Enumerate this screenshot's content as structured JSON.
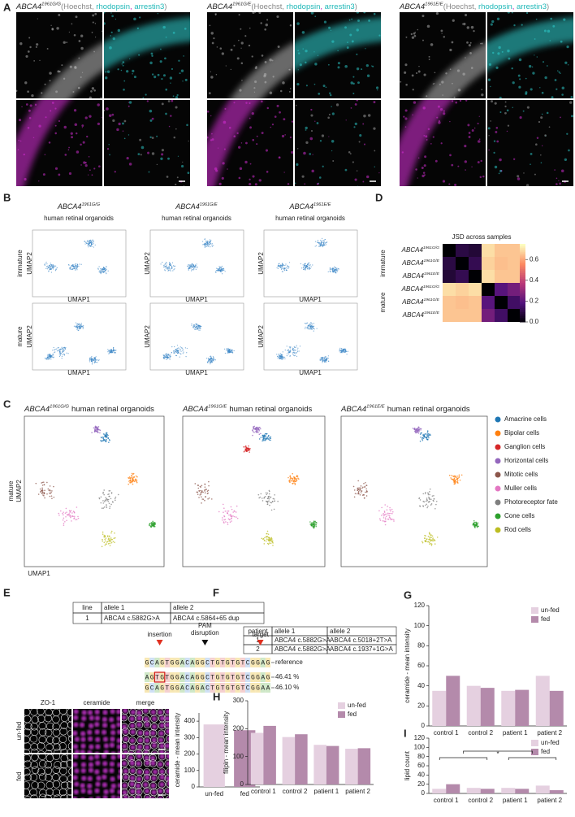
{
  "genotypes": [
    {
      "gene": "ABCA4",
      "allele": "1961G/G"
    },
    {
      "gene": "ABCA4",
      "allele": "1961G/E"
    },
    {
      "gene": "ABCA4",
      "allele": "1961E/E"
    }
  ],
  "A": {
    "label": "A",
    "stains": [
      "(Hoechst, ",
      "rhodopsin",
      ", ",
      "arrestin3",
      ")"
    ]
  },
  "B": {
    "label": "B",
    "subtitle": "human retinal organoids",
    "rows": [
      "immature",
      "mature"
    ],
    "xlabel": "UMAP1",
    "ylabel": "UMAP2"
  },
  "C": {
    "label": "C",
    "subtitle": "human retinal organoids",
    "row": "mature",
    "xlabel": "UMAP1",
    "ylabel": "UMAP2",
    "cell_types": [
      {
        "name": "Amacrine cells",
        "color": "#1f77b4"
      },
      {
        "name": "Bipolar cells",
        "color": "#ff7f0e"
      },
      {
        "name": "Ganglion cells",
        "color": "#d62728"
      },
      {
        "name": "Horizontal cells",
        "color": "#9467bd"
      },
      {
        "name": "Mitotic cells",
        "color": "#8c564b"
      },
      {
        "name": "Muller cells",
        "color": "#e377c2"
      },
      {
        "name": "Photoreceptor fate",
        "color": "#7f7f7f"
      },
      {
        "name": "Cone cells",
        "color": "#2ca02c"
      },
      {
        "name": "Rod cells",
        "color": "#bcbd22"
      }
    ]
  },
  "D": {
    "label": "D",
    "chart": {
      "type": "heatmap",
      "title": "JSD across samples",
      "row_groups": [
        "immature",
        "mature"
      ],
      "values": [
        [
          0,
          0.1,
          0.08,
          0.7,
          0.66,
          0.66
        ],
        [
          0.1,
          0,
          0.12,
          0.68,
          0.65,
          0.66
        ],
        [
          0.08,
          0.12,
          0,
          0.7,
          0.66,
          0.66
        ],
        [
          0.7,
          0.68,
          0.7,
          0,
          0.2,
          0.25
        ],
        [
          0.66,
          0.65,
          0.66,
          0.2,
          0,
          0.15
        ],
        [
          0.66,
          0.66,
          0.66,
          0.25,
          0.15,
          0
        ]
      ],
      "zlim": [
        0,
        0.75
      ],
      "zticks": [
        {
          "value": 0,
          "label": "0.0"
        },
        0.2,
        0.4,
        0.6
      ]
    }
  },
  "E": {
    "label": "E",
    "table": {
      "header": [
        "line",
        "allele 1",
        "allele 2"
      ],
      "rows": [
        [
          "1",
          "ABCA4 c.5882G>A",
          "ABCA4 c.5864+65 dup"
        ]
      ]
    },
    "annotations": {
      "insertion": "insertion",
      "pam": [
        "PAM",
        "disruption"
      ],
      "target": "target"
    },
    "sequences": [
      {
        "seq": "GCAGTGGACAGGCTGTGTGTCGGAG",
        "label": "reference"
      },
      {
        "seq": "AGTGTGGACAGGCTGTGTGTCGGAG",
        "label": "46.41 %"
      },
      {
        "seq": "GCAGTGGACAGACTGTGTGTCGGAA",
        "label": "46.10 %"
      }
    ],
    "image_headers": [
      "ZO-1",
      "ceramide",
      "merge"
    ],
    "conditions": [
      "un-fed",
      "fed"
    ],
    "chart": {
      "type": "bar",
      "ylabel": "ceramide - mean intensity",
      "categories": [
        "un-fed",
        "fed"
      ],
      "values": [
        380,
        345
      ],
      "colors": [
        "#e5d0e0",
        "#b48aab"
      ],
      "ylim": [
        0,
        450
      ],
      "yticks": [
        0,
        100,
        200,
        300,
        400
      ]
    }
  },
  "F": {
    "label": "F",
    "table": {
      "header": [
        "patient",
        "allele 1",
        "allele 2"
      ],
      "rows": [
        [
          "1",
          "ABCA4 c.5882G>A",
          "ABCA4 c.5018+2T>A"
        ],
        [
          "2",
          "ABCA4 c.5882G>A",
          "ABCA4 c.1937+1G>A"
        ]
      ]
    }
  },
  "G": {
    "label": "G",
    "chart": {
      "type": "bar",
      "ylabel": "ceramide - mean intensity",
      "categories": [
        "control 1",
        "control 2",
        "patient 1",
        "patient 2"
      ],
      "series": [
        {
          "name": "un-fed",
          "color": "#e5d0e0",
          "values": [
            35,
            40,
            35,
            50
          ]
        },
        {
          "name": "fed",
          "color": "#b48aab",
          "values": [
            50,
            38,
            36,
            35
          ]
        }
      ],
      "ylim": [
        0,
        120
      ],
      "yticks": [
        0,
        20,
        40,
        60,
        80,
        100,
        120
      ]
    }
  },
  "H": {
    "label": "H",
    "chart": {
      "type": "bar",
      "ylabel": "filipin - mean intensity",
      "categories": [
        "control 1",
        "control 2",
        "patient 1",
        "patient 2"
      ],
      "series": [
        {
          "name": "un-fed",
          "color": "#e5d0e0",
          "values": [
            185,
            170,
            142,
            128
          ]
        },
        {
          "name": "fed",
          "color": "#b48aab",
          "values": [
            210,
            180,
            138,
            130
          ]
        }
      ],
      "ylim": [
        0,
        300
      ],
      "yticks": [
        0,
        100,
        200,
        300
      ]
    }
  },
  "I": {
    "label": "I",
    "chart": {
      "type": "bar",
      "ylabel": "lipid count",
      "categories": [
        "control 1",
        "control 2",
        "patient 1",
        "patient 2"
      ],
      "series": [
        {
          "name": "un-fed",
          "color": "#e5d0e0",
          "values": [
            10,
            12,
            12,
            17
          ]
        },
        {
          "name": "fed",
          "color": "#b48aab",
          "values": [
            20,
            10,
            10,
            7
          ]
        }
      ],
      "ylim": [
        0,
        120
      ],
      "yticks": [
        0,
        20,
        40,
        60,
        80,
        100,
        120
      ],
      "annotation": "*"
    }
  }
}
